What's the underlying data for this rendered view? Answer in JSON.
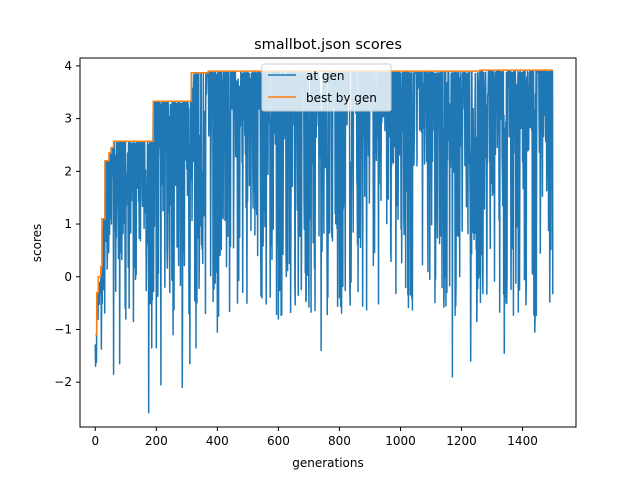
{
  "chart_data": {
    "type": "line",
    "title": "smallbot.json scores",
    "xlabel": "generations",
    "ylabel": "scores",
    "xlim": [
      -50,
      1575
    ],
    "ylim": [
      -2.85,
      4.15
    ],
    "xticks": [
      0,
      200,
      400,
      600,
      800,
      1000,
      1200,
      1400
    ],
    "yticks": [
      -2,
      -1,
      0,
      1,
      2,
      3,
      4
    ],
    "grid": false,
    "legend_position": "top-center",
    "n_generations": 1500,
    "series": [
      {
        "name": "at gen",
        "color": "#1f77b4",
        "note_min_dips": [
          [
            60,
            -1.85
          ],
          [
            80,
            -1.65
          ],
          [
            100,
            -0.8
          ],
          [
            125,
            -0.85
          ],
          [
            175,
            -2.58
          ],
          [
            185,
            -1.35
          ],
          [
            200,
            -1.35
          ],
          [
            215,
            -2.05
          ],
          [
            255,
            -1.1
          ],
          [
            285,
            -2.1
          ],
          [
            310,
            -1.65
          ],
          [
            330,
            -1.35
          ],
          [
            400,
            -1.05
          ],
          [
            600,
            -0.8
          ],
          [
            740,
            -1.4
          ],
          [
            1170,
            -1.9
          ],
          [
            1230,
            -1.6
          ],
          [
            1250,
            -0.85
          ],
          [
            1340,
            -1.45
          ],
          [
            1440,
            -1.05
          ]
        ]
      },
      {
        "name": "best by gen",
        "color": "#ff7f0e",
        "steps": [
          [
            0,
            -1.1
          ],
          [
            5,
            -0.3
          ],
          [
            10,
            0.0
          ],
          [
            18,
            0.2
          ],
          [
            22,
            1.1
          ],
          [
            32,
            2.2
          ],
          [
            45,
            2.35
          ],
          [
            52,
            2.45
          ],
          [
            60,
            2.57
          ],
          [
            190,
            3.33
          ],
          [
            315,
            3.87
          ],
          [
            370,
            3.9
          ],
          [
            1260,
            3.92
          ],
          [
            1499,
            3.92
          ]
        ]
      }
    ]
  }
}
